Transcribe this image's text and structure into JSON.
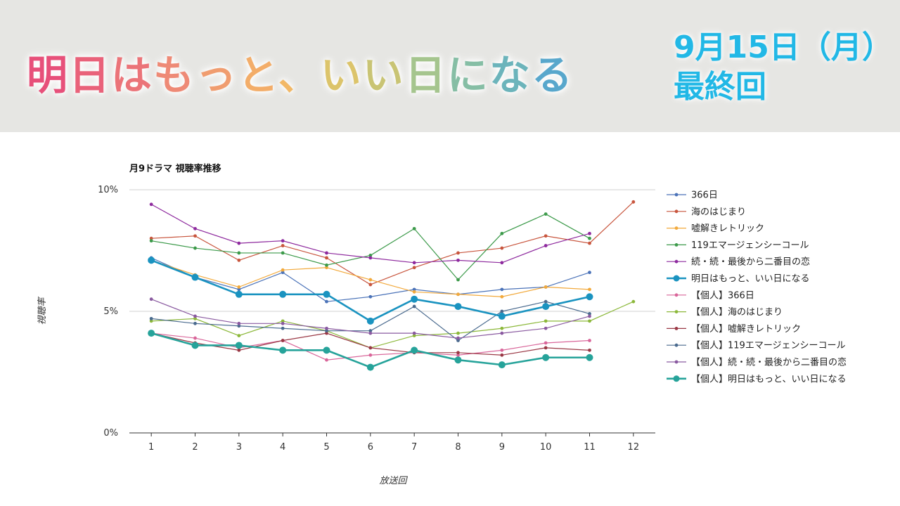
{
  "header": {
    "title_chars": [
      {
        "t": "明",
        "c": "#e7507a"
      },
      {
        "t": "日",
        "c": "#e9627a"
      },
      {
        "t": "は",
        "c": "#eb7479"
      },
      {
        "t": "も",
        "c": "#ee8a76"
      },
      {
        "t": "っ",
        "c": "#f09d70"
      },
      {
        "t": "と",
        "c": "#f3ad69"
      },
      {
        "t": "、",
        "c": "#f2b866"
      },
      {
        "t": "い",
        "c": "#dcc46b"
      },
      {
        "t": "い",
        "c": "#c9c474"
      },
      {
        "t": "日",
        "c": "#a5c58e"
      },
      {
        "t": "に",
        "c": "#86bea5"
      },
      {
        "t": "な",
        "c": "#6cb4bb"
      },
      {
        "t": "る",
        "c": "#58a7cc"
      }
    ],
    "date_line1": "9月15日（月）",
    "date_line2": "最終回"
  },
  "chart_data": {
    "type": "line",
    "title": "月9ドラマ 視聴率推移",
    "xlabel": "放送回",
    "ylabel": "視聴率",
    "x": [
      1,
      2,
      3,
      4,
      5,
      6,
      7,
      8,
      9,
      10,
      11,
      12
    ],
    "ylim": [
      0,
      10
    ],
    "yticks": [
      {
        "value": 0,
        "label": "0%"
      },
      {
        "value": 5,
        "label": "5%"
      },
      {
        "value": 10,
        "label": "10%"
      }
    ],
    "legend_position": "right",
    "grid": true,
    "series": [
      {
        "name": "366日",
        "color": "#4a72b8",
        "highlight": false,
        "values": [
          7.2,
          6.4,
          5.9,
          6.6,
          5.4,
          5.6,
          5.9,
          5.7,
          5.9,
          6.0,
          6.6,
          null
        ]
      },
      {
        "name": "海のはじまり",
        "color": "#c8553d",
        "highlight": false,
        "values": [
          8.0,
          8.1,
          7.1,
          7.7,
          7.2,
          6.1,
          6.8,
          7.4,
          7.6,
          8.1,
          7.8,
          9.5
        ]
      },
      {
        "name": "嘘解きレトリック",
        "color": "#f2a93b",
        "highlight": false,
        "values": [
          7.1,
          6.5,
          6.0,
          6.7,
          6.8,
          6.3,
          5.8,
          5.7,
          5.6,
          6.0,
          5.9,
          null
        ]
      },
      {
        "name": "119エマージェンシーコール",
        "color": "#3c9a4a",
        "highlight": false,
        "values": [
          7.9,
          7.6,
          7.4,
          7.4,
          6.9,
          7.3,
          8.4,
          6.3,
          8.2,
          9.0,
          8.0,
          null
        ]
      },
      {
        "name": "続・続・最後から二番目の恋",
        "color": "#8e2a9e",
        "highlight": false,
        "values": [
          9.4,
          8.4,
          7.8,
          7.9,
          7.4,
          7.2,
          7.0,
          7.1,
          7.0,
          7.7,
          8.2,
          null
        ]
      },
      {
        "name": "明日はもっと、いい日になる",
        "color": "#1a93c0",
        "highlight": true,
        "values": [
          7.1,
          6.4,
          5.7,
          5.7,
          5.7,
          4.6,
          5.5,
          5.2,
          4.8,
          5.2,
          5.6,
          null
        ]
      },
      {
        "name": "【個人】366日",
        "color": "#d9669a",
        "highlight": false,
        "values": [
          4.1,
          3.9,
          3.5,
          3.8,
          3.0,
          3.2,
          3.3,
          3.2,
          3.4,
          3.7,
          3.8,
          null
        ]
      },
      {
        "name": "【個人】海のはじまり",
        "color": "#8cb83a",
        "highlight": false,
        "values": [
          4.6,
          4.7,
          4.0,
          4.6,
          4.2,
          3.5,
          4.0,
          4.1,
          4.3,
          4.6,
          4.6,
          5.4
        ]
      },
      {
        "name": "【個人】嘘解きレトリック",
        "color": "#9a3845",
        "highlight": false,
        "values": [
          4.1,
          3.7,
          3.4,
          3.8,
          4.1,
          3.5,
          3.3,
          3.3,
          3.2,
          3.5,
          3.4,
          null
        ]
      },
      {
        "name": "【個人】119エマージェンシーコール",
        "color": "#4a6a8e",
        "highlight": false,
        "values": [
          4.7,
          4.5,
          4.4,
          4.3,
          4.2,
          4.2,
          5.2,
          3.8,
          5.0,
          5.4,
          4.9,
          null
        ]
      },
      {
        "name": "【個人】続・続・最後から二番目の恋",
        "color": "#8a5aa0",
        "highlight": false,
        "values": [
          5.5,
          4.8,
          4.5,
          4.5,
          4.3,
          4.1,
          4.1,
          3.9,
          4.1,
          4.3,
          4.8,
          null
        ]
      },
      {
        "name": "【個人】明日はもっと、いい日になる",
        "color": "#26a39a",
        "highlight": true,
        "values": [
          4.1,
          3.6,
          3.6,
          3.4,
          3.4,
          2.7,
          3.4,
          3.0,
          2.8,
          3.1,
          3.1,
          null
        ]
      }
    ]
  }
}
